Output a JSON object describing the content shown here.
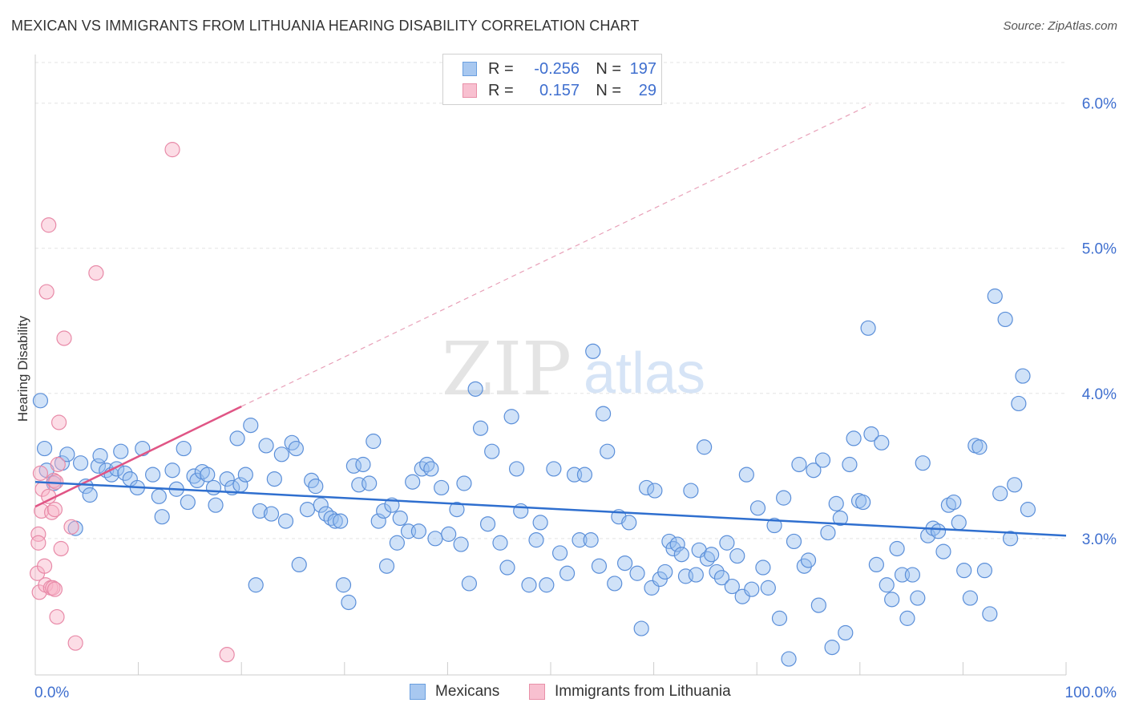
{
  "title": "MEXICAN VS IMMIGRANTS FROM LITHUANIA HEARING DISABILITY CORRELATION CHART",
  "source": "Source: ZipAtlas.com",
  "watermark": {
    "zip": "ZIP",
    "atlas": "atlas"
  },
  "legend_top": [
    {
      "r_label": "R =",
      "r_value": "-0.256",
      "n_label": "N =",
      "n_value": "197",
      "color": "#a8c8f0",
      "border": "#6a9fdf"
    },
    {
      "r_label": "R =",
      "r_value": "0.157",
      "n_label": "N =",
      "n_value": "29",
      "color": "#f8c0d0",
      "border": "#e890a8"
    }
  ],
  "legend_bottom": [
    {
      "label": "Mexicans",
      "color": "#a8c8f0",
      "border": "#6a9fdf"
    },
    {
      "label": "Immigrants from Lithuania",
      "color": "#f8c0d0",
      "border": "#e890a8"
    }
  ],
  "chart_data": {
    "type": "scatter",
    "title": "MEXICAN VS IMMIGRANTS FROM LITHUANIA HEARING DISABILITY CORRELATION CHART",
    "xlabel": "",
    "ylabel": "Hearing Disability",
    "x_tick_labels": [
      "0.0%",
      "100.0%"
    ],
    "y_tick_labels": [
      "3.0%",
      "4.0%",
      "5.0%",
      "6.0%"
    ],
    "y_ticks": [
      3.0,
      4.0,
      5.0,
      6.0
    ],
    "xlim": [
      0,
      100
    ],
    "ylim": [
      2.06,
      6.28
    ],
    "grid": true,
    "series": [
      {
        "name": "Mexicans",
        "color": "#5b8fd9",
        "fill": "rgba(150,190,240,0.45)",
        "trend": {
          "x": [
            0,
            100
          ],
          "y": [
            3.39,
            3.02
          ],
          "color": "#2f6fcf"
        },
        "points": [
          [
            0.5,
            3.95
          ],
          [
            0.9,
            3.62
          ],
          [
            1.1,
            3.47
          ],
          [
            1.8,
            3.38
          ],
          [
            2.6,
            3.52
          ],
          [
            3.1,
            3.58
          ],
          [
            3.9,
            3.07
          ],
          [
            4.4,
            3.52
          ],
          [
            4.9,
            3.36
          ],
          [
            5.3,
            3.3
          ],
          [
            6.1,
            3.5
          ],
          [
            6.3,
            3.57
          ],
          [
            6.9,
            3.47
          ],
          [
            7.4,
            3.44
          ],
          [
            7.9,
            3.48
          ],
          [
            8.3,
            3.6
          ],
          [
            8.7,
            3.45
          ],
          [
            9.2,
            3.41
          ],
          [
            9.9,
            3.35
          ],
          [
            10.4,
            3.62
          ],
          [
            11.4,
            3.44
          ],
          [
            12.0,
            3.29
          ],
          [
            12.3,
            3.15
          ],
          [
            13.3,
            3.47
          ],
          [
            13.7,
            3.34
          ],
          [
            14.4,
            3.62
          ],
          [
            14.8,
            3.25
          ],
          [
            15.4,
            3.43
          ],
          [
            15.7,
            3.4
          ],
          [
            16.2,
            3.46
          ],
          [
            16.7,
            3.44
          ],
          [
            17.3,
            3.35
          ],
          [
            17.5,
            3.23
          ],
          [
            18.6,
            3.41
          ],
          [
            19.1,
            3.35
          ],
          [
            19.6,
            3.69
          ],
          [
            19.9,
            3.37
          ],
          [
            20.4,
            3.44
          ],
          [
            20.9,
            3.78
          ],
          [
            21.4,
            2.68
          ],
          [
            21.8,
            3.19
          ],
          [
            22.4,
            3.64
          ],
          [
            22.9,
            3.17
          ],
          [
            23.2,
            3.41
          ],
          [
            23.9,
            3.58
          ],
          [
            24.3,
            3.12
          ],
          [
            24.9,
            3.66
          ],
          [
            25.3,
            3.62
          ],
          [
            25.6,
            2.82
          ],
          [
            26.4,
            3.2
          ],
          [
            26.8,
            3.4
          ],
          [
            27.2,
            3.36
          ],
          [
            27.7,
            3.23
          ],
          [
            28.2,
            3.17
          ],
          [
            28.7,
            3.14
          ],
          [
            29.1,
            3.12
          ],
          [
            29.6,
            3.12
          ],
          [
            29.9,
            2.68
          ],
          [
            30.4,
            2.56
          ],
          [
            30.9,
            3.5
          ],
          [
            31.4,
            3.37
          ],
          [
            31.8,
            3.51
          ],
          [
            32.4,
            3.38
          ],
          [
            32.8,
            3.67
          ],
          [
            33.3,
            3.12
          ],
          [
            33.8,
            3.19
          ],
          [
            34.1,
            2.81
          ],
          [
            34.6,
            3.23
          ],
          [
            35.1,
            2.97
          ],
          [
            35.4,
            3.14
          ],
          [
            36.2,
            3.05
          ],
          [
            36.6,
            3.39
          ],
          [
            37.2,
            3.05
          ],
          [
            37.5,
            3.48
          ],
          [
            38.0,
            3.51
          ],
          [
            38.4,
            3.48
          ],
          [
            38.8,
            3.0
          ],
          [
            39.4,
            3.35
          ],
          [
            40.1,
            3.03
          ],
          [
            40.9,
            3.2
          ],
          [
            41.3,
            2.96
          ],
          [
            41.6,
            3.38
          ],
          [
            42.1,
            2.69
          ],
          [
            42.7,
            4.03
          ],
          [
            43.2,
            3.76
          ],
          [
            43.9,
            3.1
          ],
          [
            44.3,
            3.6
          ],
          [
            45.1,
            2.97
          ],
          [
            45.8,
            2.8
          ],
          [
            46.2,
            3.84
          ],
          [
            46.7,
            3.48
          ],
          [
            47.1,
            3.19
          ],
          [
            47.9,
            2.68
          ],
          [
            48.6,
            2.99
          ],
          [
            49.0,
            3.11
          ],
          [
            49.6,
            2.68
          ],
          [
            50.3,
            3.48
          ],
          [
            50.9,
            2.9
          ],
          [
            51.6,
            2.76
          ],
          [
            52.3,
            3.44
          ],
          [
            52.8,
            2.99
          ],
          [
            53.3,
            3.44
          ],
          [
            53.9,
            2.99
          ],
          [
            54.1,
            4.29
          ],
          [
            54.7,
            2.81
          ],
          [
            55.1,
            3.86
          ],
          [
            55.5,
            3.6
          ],
          [
            56.2,
            2.69
          ],
          [
            56.6,
            3.15
          ],
          [
            57.2,
            2.83
          ],
          [
            57.6,
            3.11
          ],
          [
            58.4,
            2.76
          ],
          [
            58.8,
            2.38
          ],
          [
            59.3,
            3.35
          ],
          [
            59.8,
            2.66
          ],
          [
            60.1,
            3.33
          ],
          [
            60.6,
            2.72
          ],
          [
            61.1,
            2.77
          ],
          [
            61.5,
            2.98
          ],
          [
            61.9,
            2.93
          ],
          [
            62.3,
            2.96
          ],
          [
            62.7,
            2.89
          ],
          [
            63.1,
            2.74
          ],
          [
            63.6,
            3.33
          ],
          [
            64.1,
            2.75
          ],
          [
            64.4,
            2.92
          ],
          [
            64.9,
            3.63
          ],
          [
            65.2,
            2.86
          ],
          [
            65.6,
            2.89
          ],
          [
            66.1,
            2.77
          ],
          [
            66.6,
            2.73
          ],
          [
            67.1,
            2.97
          ],
          [
            67.6,
            2.67
          ],
          [
            68.1,
            2.88
          ],
          [
            68.6,
            2.6
          ],
          [
            69.0,
            3.44
          ],
          [
            69.5,
            2.65
          ],
          [
            70.1,
            3.21
          ],
          [
            70.6,
            2.8
          ],
          [
            71.1,
            2.66
          ],
          [
            71.7,
            3.09
          ],
          [
            72.2,
            2.45
          ],
          [
            72.6,
            3.28
          ],
          [
            73.1,
            2.17
          ],
          [
            73.6,
            2.98
          ],
          [
            74.1,
            3.51
          ],
          [
            74.6,
            2.81
          ],
          [
            75.0,
            2.85
          ],
          [
            75.5,
            3.47
          ],
          [
            76.0,
            2.54
          ],
          [
            76.4,
            3.54
          ],
          [
            76.9,
            3.04
          ],
          [
            77.3,
            2.25
          ],
          [
            77.7,
            3.24
          ],
          [
            78.1,
            3.14
          ],
          [
            78.6,
            2.35
          ],
          [
            79.0,
            3.51
          ],
          [
            79.4,
            3.69
          ],
          [
            79.9,
            3.26
          ],
          [
            80.3,
            3.25
          ],
          [
            80.8,
            4.45
          ],
          [
            81.1,
            3.72
          ],
          [
            81.6,
            2.82
          ],
          [
            82.1,
            3.66
          ],
          [
            82.6,
            2.68
          ],
          [
            83.1,
            2.58
          ],
          [
            83.6,
            2.93
          ],
          [
            84.1,
            2.75
          ],
          [
            84.6,
            2.45
          ],
          [
            85.1,
            2.75
          ],
          [
            85.6,
            2.59
          ],
          [
            86.1,
            3.52
          ],
          [
            86.6,
            3.02
          ],
          [
            87.1,
            3.07
          ],
          [
            87.6,
            3.05
          ],
          [
            88.1,
            2.91
          ],
          [
            88.6,
            3.23
          ],
          [
            89.1,
            3.25
          ],
          [
            89.6,
            3.11
          ],
          [
            90.1,
            2.78
          ],
          [
            90.7,
            2.59
          ],
          [
            91.2,
            3.64
          ],
          [
            91.6,
            3.63
          ],
          [
            92.1,
            2.78
          ],
          [
            92.6,
            2.48
          ],
          [
            93.1,
            4.67
          ],
          [
            93.6,
            3.31
          ],
          [
            94.1,
            4.51
          ],
          [
            94.6,
            3.0
          ],
          [
            95.0,
            3.37
          ],
          [
            95.4,
            3.93
          ],
          [
            95.8,
            4.12
          ],
          [
            96.3,
            3.2
          ]
        ]
      },
      {
        "name": "Immigrants from Lithuania",
        "color": "#e88aa8",
        "fill": "rgba(248,180,200,0.45)",
        "trend": {
          "x": [
            0,
            20
          ],
          "y": [
            3.22,
            3.91
          ],
          "color": "#e05585"
        },
        "trend_extended": {
          "x": [
            20,
            81
          ],
          "y": [
            3.91,
            5.99
          ],
          "color": "#e8a0b8"
        },
        "points": [
          [
            0.2,
            2.76
          ],
          [
            0.3,
            3.03
          ],
          [
            0.3,
            2.97
          ],
          [
            0.4,
            2.63
          ],
          [
            0.5,
            3.45
          ],
          [
            0.6,
            3.19
          ],
          [
            0.7,
            3.34
          ],
          [
            0.9,
            2.81
          ],
          [
            1.0,
            2.68
          ],
          [
            1.1,
            4.7
          ],
          [
            1.3,
            3.29
          ],
          [
            1.3,
            5.16
          ],
          [
            1.5,
            2.66
          ],
          [
            1.6,
            3.18
          ],
          [
            1.7,
            2.66
          ],
          [
            1.8,
            3.4
          ],
          [
            1.9,
            3.2
          ],
          [
            1.9,
            2.65
          ],
          [
            2.0,
            3.39
          ],
          [
            2.1,
            2.46
          ],
          [
            2.2,
            3.51
          ],
          [
            2.3,
            3.8
          ],
          [
            2.5,
            2.93
          ],
          [
            2.8,
            4.38
          ],
          [
            3.5,
            3.08
          ],
          [
            3.9,
            2.28
          ],
          [
            5.9,
            4.83
          ],
          [
            13.3,
            5.68
          ],
          [
            18.6,
            2.2
          ]
        ]
      }
    ]
  }
}
